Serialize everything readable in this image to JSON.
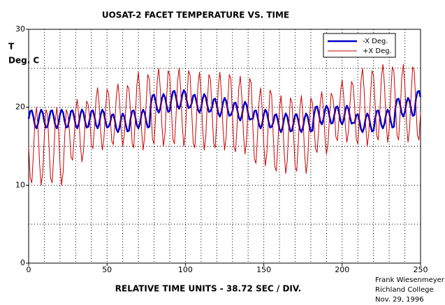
{
  "chart_data": {
    "type": "line",
    "title": "UOSAT-2 FACET TEMPERATURE VS. TIME",
    "ylabel": [
      "T",
      "Deg. C"
    ],
    "xlabel": "RELATIVE TIME UNITS - 38.72 SEC / DIV.",
    "credits": [
      "Frank Wiesenmeyer",
      "Richland College",
      "Nov. 29, 1996"
    ],
    "xlim": [
      0,
      250
    ],
    "ylim": [
      0,
      30
    ],
    "xticks": [
      0,
      50,
      100,
      150,
      200,
      250
    ],
    "yticks": [
      0,
      10,
      20,
      30
    ],
    "xgrid": [
      0,
      10,
      20,
      30,
      40,
      50,
      60,
      70,
      80,
      90,
      100,
      110,
      120,
      130,
      140,
      150,
      160,
      170,
      180,
      190,
      200,
      210,
      220,
      230,
      240,
      250
    ],
    "ygrid": [
      0,
      5,
      10,
      15,
      20,
      25,
      30
    ],
    "grid": true,
    "legend": "upper right",
    "x": [
      0,
      1,
      2,
      3,
      4,
      5,
      6,
      7,
      8,
      9,
      10,
      11,
      12,
      13,
      14,
      15,
      16,
      17,
      18,
      19,
      20,
      21,
      22,
      23,
      24,
      25,
      26,
      27,
      28,
      29,
      30,
      31,
      32,
      33,
      34,
      35,
      36,
      37,
      38,
      39,
      40,
      41,
      42,
      43,
      44,
      45,
      46,
      47,
      48,
      49,
      50,
      51,
      52,
      53,
      54,
      55,
      56,
      57,
      58,
      59,
      60,
      61,
      62,
      63,
      64,
      65,
      66,
      67,
      68,
      69,
      70,
      71,
      72,
      73,
      74,
      75,
      76,
      77,
      78,
      79,
      80,
      81,
      82,
      83,
      84,
      85,
      86,
      87,
      88,
      89,
      90,
      91,
      92,
      93,
      94,
      95,
      96,
      97,
      98,
      99,
      100,
      101,
      102,
      103,
      104,
      105,
      106,
      107,
      108,
      109,
      110,
      111,
      112,
      113,
      114,
      115,
      116,
      117,
      118,
      119,
      120,
      121,
      122,
      123,
      124,
      125,
      126,
      127,
      128,
      129,
      130,
      131,
      132,
      133,
      134,
      135,
      136,
      137,
      138,
      139,
      140,
      141,
      142,
      143,
      144,
      145,
      146,
      147,
      148,
      149,
      150,
      151,
      152,
      153,
      154,
      155,
      156,
      157,
      158,
      159,
      160,
      161,
      162,
      163,
      164,
      165,
      166,
      167,
      168,
      169,
      170,
      171,
      172,
      173,
      174,
      175,
      176,
      177,
      178,
      179,
      180,
      181,
      182,
      183,
      184,
      185,
      186,
      187,
      188,
      189,
      190,
      191,
      192,
      193,
      194,
      195,
      196,
      197,
      198,
      199,
      200,
      201,
      202,
      203,
      204,
      205,
      206,
      207,
      208,
      209,
      210,
      211,
      212,
      213,
      214,
      215,
      216,
      217,
      218,
      219,
      220,
      221,
      222,
      223,
      224,
      225,
      226,
      227,
      228,
      229,
      230,
      231,
      232,
      233,
      234,
      235,
      236,
      237,
      238,
      239,
      240,
      241,
      242,
      243,
      244,
      245,
      246,
      247,
      248,
      249,
      250
    ],
    "series": [
      {
        "name": "-X Deg.",
        "color": "#0000cc",
        "width": 2.5,
        "values": [
          18.5,
          19.5,
          19.6,
          18.8,
          17.7,
          17.3,
          17.9,
          19.1,
          19.7,
          19.3,
          18.2,
          17.4,
          17.5,
          18.5,
          19.5,
          19.6,
          18.8,
          17.7,
          17.3,
          17.9,
          19.1,
          19.7,
          19.3,
          18.2,
          17.4,
          17.5,
          18.5,
          19.5,
          19.6,
          18.8,
          17.7,
          17.3,
          17.9,
          19.1,
          19.7,
          19.3,
          18.2,
          17.4,
          17.5,
          18.5,
          19.5,
          19.6,
          18.8,
          17.7,
          17.3,
          17.9,
          19.1,
          19.7,
          19.3,
          18.2,
          17.4,
          17.5,
          18,
          19,
          19.1,
          18.3,
          17.2,
          16.8,
          17.4,
          18.6,
          19.2,
          18.8,
          17.7,
          16.9,
          17,
          18.5,
          19.5,
          19.6,
          18.8,
          17.7,
          17.3,
          17.9,
          19.1,
          19.7,
          19.3,
          18.2,
          17.4,
          17.5,
          20.5,
          21.5,
          21.6,
          20.8,
          19.7,
          19.3,
          19.9,
          21.1,
          21.7,
          21.3,
          20.2,
          19.4,
          19.5,
          21,
          22,
          22.1,
          21.3,
          20.2,
          19.8,
          20.4,
          21.6,
          22.2,
          21.8,
          20.7,
          19.9,
          20,
          20.5,
          21.5,
          21.6,
          20.8,
          19.7,
          19.3,
          19.9,
          21.1,
          21.7,
          21.3,
          20.2,
          19.4,
          19.5,
          20,
          21,
          21.1,
          20.3,
          19.2,
          18.8,
          19.4,
          20.6,
          21.2,
          20.8,
          19.7,
          18.9,
          19,
          19.5,
          20.5,
          20.6,
          19.8,
          18.7,
          18.3,
          18.9,
          20.1,
          20.7,
          20.3,
          19.2,
          18.4,
          18.5,
          18.5,
          19.5,
          19.6,
          18.8,
          17.7,
          17.3,
          17.9,
          19.1,
          19.7,
          19.3,
          18.2,
          17.4,
          17.5,
          18,
          19,
          19.1,
          18.3,
          17.2,
          16.8,
          17.4,
          18.6,
          19.2,
          18.8,
          17.7,
          16.9,
          17,
          18,
          19,
          19.1,
          18.3,
          17.2,
          16.8,
          17.4,
          18.6,
          19.2,
          18.8,
          17.7,
          16.9,
          17,
          19,
          20,
          20.1,
          19.3,
          18.2,
          17.8,
          18.4,
          19.6,
          20.2,
          19.8,
          18.7,
          17.9,
          18,
          19,
          20,
          20.1,
          19.3,
          18.2,
          17.8,
          18.4,
          19.6,
          20.2,
          19.8,
          18.7,
          17.9,
          18,
          18,
          19,
          19.1,
          18.3,
          17.2,
          16.8,
          17.4,
          18.6,
          19.2,
          18.8,
          17.7,
          16.9,
          17,
          18.5,
          19.5,
          19.6,
          18.8,
          17.7,
          17.3,
          17.9,
          19.1,
          19.7,
          19.3,
          18.2,
          17.4,
          17.5,
          20,
          21,
          21.1,
          20.3,
          19.2,
          18.8,
          19.4,
          20.6,
          21.2,
          20.8,
          19.7,
          18.9,
          19,
          21,
          22,
          22.1,
          21.3
        ]
      },
      {
        "name": "+X Deg.",
        "color": "#cc0000",
        "width": 1,
        "values": [
          15,
          10.9,
          10.3,
          13.8,
          18.3,
          20,
          17.3,
          12.7,
          10,
          11.7,
          16.2,
          19.7,
          19.1,
          15,
          10.9,
          10.3,
          13.8,
          18.3,
          20,
          17.3,
          12.7,
          10,
          11.7,
          16.2,
          19.7,
          19.1,
          17,
          13.7,
          13.2,
          16,
          19.6,
          21,
          18.8,
          15.2,
          13,
          14.4,
          18,
          20.8,
          20.3,
          18.5,
          15.2,
          14.7,
          17.5,
          21.1,
          22.5,
          20.3,
          16.7,
          14.5,
          15.9,
          19.5,
          22.3,
          21.8,
          19,
          15.7,
          15.2,
          18,
          21.6,
          23,
          20.8,
          17.2,
          15,
          16.4,
          20,
          22.8,
          22.3,
          19.5,
          15.4,
          14.8,
          18.3,
          22.8,
          24.5,
          21.8,
          17.2,
          14.5,
          16.2,
          20.7,
          24.2,
          23.6,
          20,
          15.9,
          15.3,
          18.8,
          23.3,
          25,
          22.3,
          17.7,
          15,
          16.7,
          21.2,
          24.7,
          24.1,
          20,
          15.9,
          15.3,
          18.8,
          23.3,
          25,
          22.3,
          17.7,
          15,
          16.7,
          21.2,
          24.7,
          24.1,
          19.5,
          15.4,
          14.8,
          18.3,
          22.8,
          24.5,
          21.8,
          17.2,
          14.5,
          16.2,
          20.7,
          24.2,
          23.6,
          19.5,
          15.4,
          14.8,
          18.3,
          22.8,
          24.5,
          21.8,
          17.2,
          14.5,
          16.2,
          20.7,
          24.2,
          23.6,
          19,
          14.9,
          14.3,
          17.8,
          22.3,
          24,
          21.3,
          16.7,
          14,
          15.7,
          20.2,
          23.7,
          23.1,
          17.5,
          13.4,
          12.8,
          16.3,
          20.8,
          22.5,
          19.8,
          15.2,
          12.5,
          14.2,
          18.7,
          22.2,
          21.6,
          16.5,
          12.4,
          11.8,
          15.3,
          19.8,
          21.5,
          18.8,
          14.2,
          11.5,
          13.2,
          17.7,
          21.2,
          20.6,
          16.5,
          12.4,
          11.8,
          15.3,
          19.8,
          21.5,
          18.8,
          14.2,
          11.5,
          13.2,
          17.7,
          21.2,
          20.6,
          18,
          14.7,
          14.2,
          17,
          20.6,
          22,
          19.8,
          16.2,
          14,
          15.4,
          19,
          21.8,
          21.3,
          19.5,
          16.2,
          15.7,
          18.5,
          22.1,
          23.5,
          21.3,
          17.7,
          15.5,
          16.9,
          20.5,
          23.3,
          22.8,
          20,
          15.9,
          15.3,
          18.8,
          23.3,
          25,
          22.3,
          17.7,
          15,
          16.7,
          21.2,
          24.7,
          24.1,
          20.5,
          16.4,
          15.8,
          19.3,
          23.8,
          25.5,
          22.8,
          18.2,
          15.5,
          17.2,
          21.7,
          25.2,
          24.6,
          20.5,
          16.4,
          15.8,
          19.3,
          23.8,
          25.5,
          22.8,
          18.2,
          15.5,
          17.2,
          21.7,
          25.2,
          24.6,
          20.5,
          16.4,
          15.8,
          19.3
        ]
      }
    ]
  }
}
